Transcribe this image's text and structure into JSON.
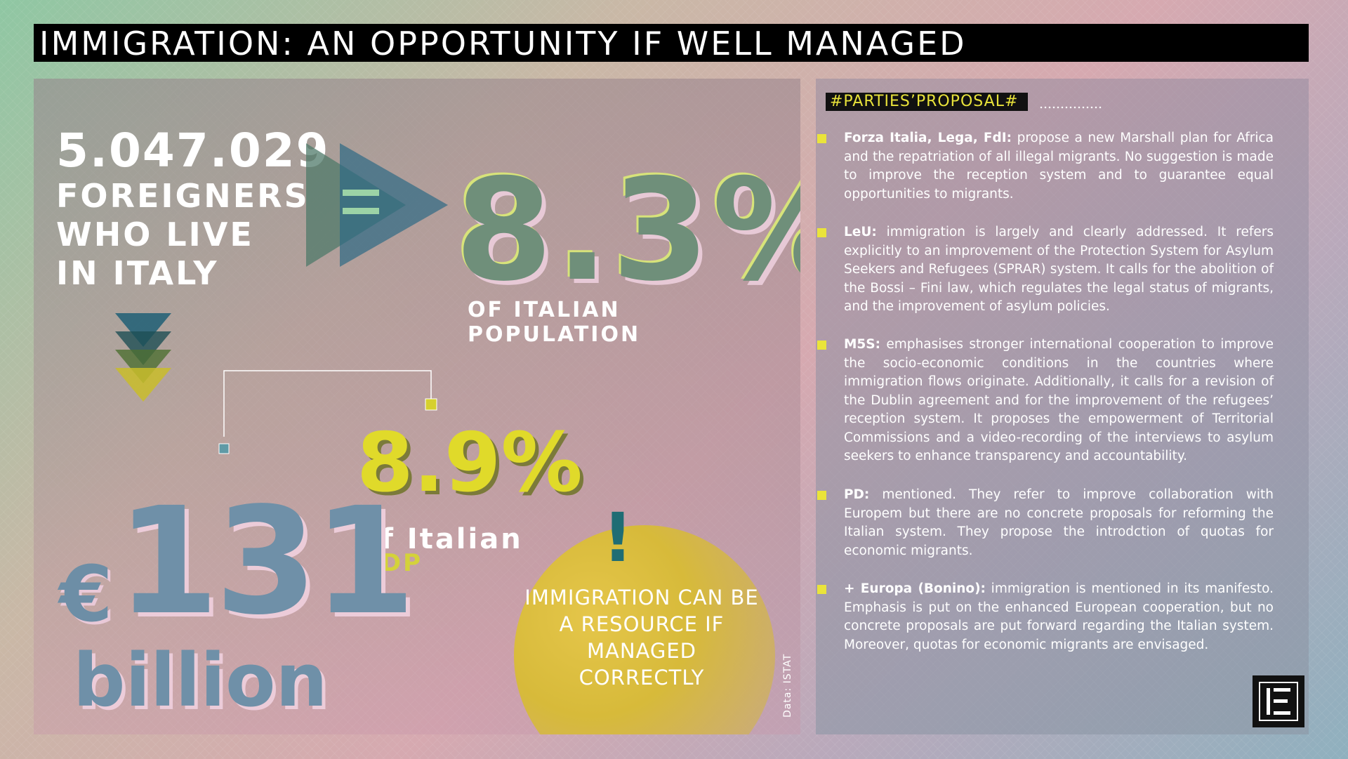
{
  "title": "IMMIGRATION: AN OPPORTUNITY IF WELL MANAGED",
  "left": {
    "foreigners_count": "5.047.029",
    "foreigners_lines": [
      "FOREIGNERS",
      "WHO LIVE",
      "IN ITALY"
    ],
    "population_pct": "8.3%",
    "population_label": "OF ITALIAN POPULATION",
    "gdp_pct": "8.9%",
    "gdp_of": "of Italian",
    "gdp_word": "GDP",
    "euro_symbol": "€",
    "euro_amount": "131",
    "euro_unit": "billion",
    "exclamation": "!",
    "circle_text": "IMMIGRATION CAN BE A RESOURCE IF MANAGED CORRECTLY",
    "source": "Data: ISTAT",
    "equals_symbol": "="
  },
  "right": {
    "tag": "#PARTIES’PROPOSAL#",
    "parties": [
      {
        "name": "Forza Italia, Lega, FdI:",
        "text": " propose a new Marshall plan for Africa and the repatriation of all illegal migrants. No suggestion is made to improve the reception system and to guarantee equal opportunities to migrants."
      },
      {
        "name": "LeU:",
        "text": " immigration is largely and clearly addressed. It refers explicitly to an improvement of the Protection System for Asylum Seekers and Refugees (SPRAR) system. It calls for the abolition of the Bossi – Fini law, which regulates the legal status of migrants, and the improvement of asylum policies."
      },
      {
        "name": "M5S:",
        "text": " emphasises stronger international cooperation to improve the socio-economic conditions in the countries where immigration flows originate. Additionally, it calls for a revision of the Dublin agreement and for the improvement of the refugees’ reception system. It proposes the empowerment of Territorial Commissions and a video-recording of the interviews to asylum seekers to enhance transparency and accountability."
      },
      {
        "name": "PD:",
        "text": " mentioned. They refer to improve collaboration with Europem but there are no concrete proposals for reforming the Italian system. They propose the introdction of quotas for economic migrants."
      },
      {
        "name": "+ Europa (Bonino):",
        "text": " immigration is mentioned in its manifesto. Emphasis is put on the enhanced European cooperation, but no concrete proposals are put forward regarding the Italian system. Moreover, quotas for economic migrants are envisaged."
      }
    ],
    "logo_icon": "publisher-logo-icon"
  },
  "colors": {
    "accent_yellow": "#e0da2a",
    "teal": "#1f6d74",
    "blue_number": "#6f90a8",
    "green_number": "#6f8f7a"
  }
}
